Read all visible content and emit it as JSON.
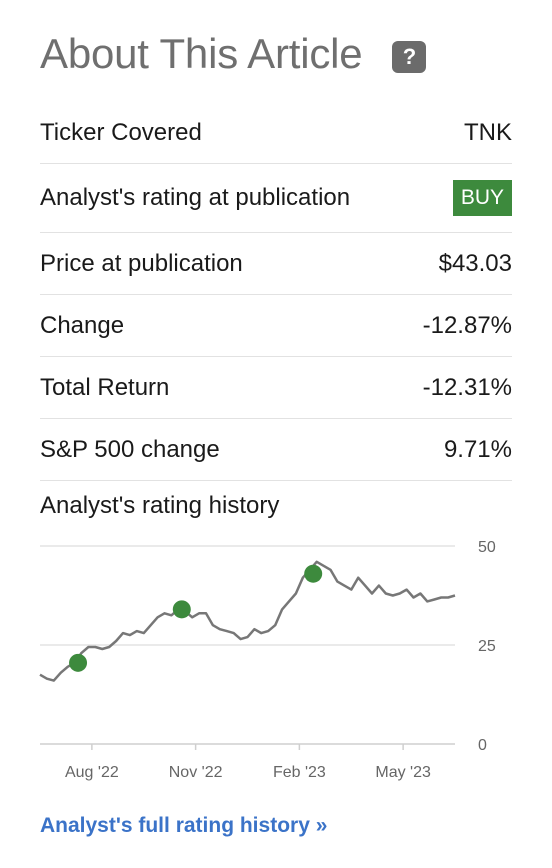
{
  "header": {
    "title": "About This Article",
    "help_icon_label": "?"
  },
  "rows": [
    {
      "label": "Ticker Covered",
      "value": "TNK"
    },
    {
      "label": "Analyst's rating at publication",
      "value": "BUY"
    },
    {
      "label": "Price at publication",
      "value": "$43.03"
    },
    {
      "label": "Change",
      "value": "-12.87%"
    },
    {
      "label": "Total Return",
      "value": "-12.31%"
    },
    {
      "label": "S&P 500 change",
      "value": "9.71%"
    }
  ],
  "history": {
    "title": "Analyst's rating history",
    "link": "Analyst's full rating history »"
  },
  "colors": {
    "link": "#3b73c8",
    "buy_badge": "#3d8a3d",
    "negative": "#c0392b",
    "positive": "#2e7d4b",
    "price_line": "#777777",
    "rating_marker": "#3d8a3d"
  },
  "chart_data": {
    "type": "line",
    "ylim": [
      0,
      50
    ],
    "y_ticks": [
      0,
      25,
      50
    ],
    "x_ticks": [
      "Aug '22",
      "Nov '22",
      "Feb '23",
      "May '23"
    ],
    "x_tick_pos": [
      0.5,
      3.5,
      6.5,
      9.5
    ],
    "xlim": [
      -1,
      11
    ],
    "series": [
      {
        "x": [
          -1,
          -0.8,
          -0.6,
          -0.4,
          -0.2,
          0,
          0.2,
          0.4,
          0.6,
          0.8,
          1,
          1.2,
          1.4,
          1.6,
          1.8,
          2,
          2.2,
          2.4,
          2.6,
          2.8,
          3,
          3.2,
          3.4,
          3.6,
          3.8,
          4,
          4.2,
          4.4,
          4.6,
          4.8,
          5,
          5.2,
          5.4,
          5.6,
          5.8,
          6,
          6.2,
          6.4,
          6.6,
          6.8,
          7,
          7.2,
          7.4,
          7.6,
          7.8,
          8,
          8.2,
          8.4,
          8.6,
          8.8,
          9,
          9.2,
          9.4,
          9.6,
          9.8,
          10,
          10.2,
          10.4,
          10.6,
          10.8,
          11
        ],
        "values": [
          17.5,
          16.5,
          16,
          18,
          19.5,
          20.5,
          23,
          24.5,
          24.5,
          24,
          24.5,
          26,
          28,
          27.5,
          28.5,
          28,
          30,
          32,
          33,
          32.5,
          34,
          33.5,
          32,
          33,
          33,
          30,
          29,
          28.5,
          28,
          26.5,
          27,
          29,
          28,
          28.5,
          30,
          34,
          36,
          38,
          42,
          44,
          46,
          45,
          44,
          41,
          40,
          39,
          42,
          40,
          38,
          40,
          38,
          37.5,
          38,
          39,
          37,
          38,
          36,
          36.5,
          37,
          37,
          37.5
        ]
      }
    ],
    "markers": [
      {
        "x": 0.1,
        "y": 20.5,
        "label": "BUY"
      },
      {
        "x": 3.1,
        "y": 34,
        "label": "BUY"
      },
      {
        "x": 6.9,
        "y": 43,
        "label": "BUY"
      }
    ]
  }
}
